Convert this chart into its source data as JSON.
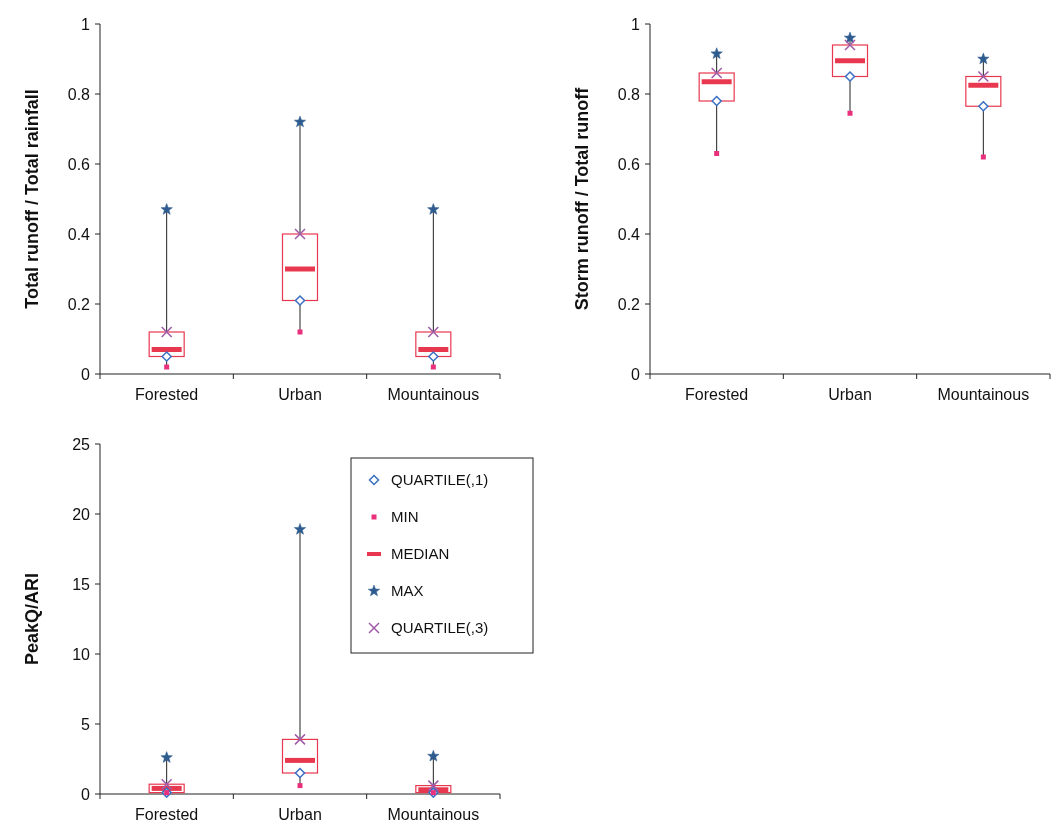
{
  "chart_data": [
    {
      "type": "box",
      "ylabel": "Total runoff / Total rainfall",
      "categories": [
        "Forested",
        "Urban",
        "Mountainous"
      ],
      "ylim": [
        0,
        1
      ],
      "yticks": [
        0,
        0.2,
        0.4,
        0.6,
        0.8,
        1
      ],
      "legend": false,
      "series": [
        {
          "type": "scatter",
          "marker": "diamond",
          "color": "#3a6fc4",
          "x": [
            "Forested",
            "Urban",
            "Mountainous"
          ],
          "values": [
            0.05,
            0.21,
            0.05
          ]
        },
        {
          "type": "scatter",
          "marker": "square",
          "color": "#e8307c",
          "x": [
            "Forested",
            "Urban",
            "Mountainous"
          ],
          "values": [
            0.02,
            0.12,
            0.02
          ]
        },
        {
          "color": "#e8384f",
          "boxes": [
            {
              "low": 0.02,
              "q1": 0.05,
              "median": 0.07,
              "q3": 0.12,
              "high": 0.47
            },
            {
              "low": 0.12,
              "q1": 0.21,
              "median": 0.3,
              "q3": 0.4,
              "high": 0.72
            },
            {
              "low": 0.02,
              "q1": 0.05,
              "median": 0.07,
              "q3": 0.12,
              "high": 0.47
            }
          ]
        },
        {
          "type": "scatter",
          "marker": "star",
          "color": "#2f5c8f",
          "x": [
            "Forested",
            "Urban",
            "Mountainous"
          ],
          "values": [
            0.47,
            0.72,
            0.47
          ]
        },
        {
          "type": "scatter",
          "marker": "cross",
          "color": "#a05aa8",
          "x": [
            "Forested",
            "Urban",
            "Mountainous"
          ],
          "values": [
            0.12,
            0.4,
            0.12
          ]
        }
      ]
    },
    {
      "type": "box",
      "ylabel": "Storm runoff / Total runoff",
      "categories": [
        "Forested",
        "Urban",
        "Mountainous"
      ],
      "ylim": [
        0,
        1
      ],
      "yticks": [
        0,
        0.2,
        0.4,
        0.6,
        0.8,
        1
      ],
      "legend": false,
      "series": [
        {
          "type": "scatter",
          "marker": "diamond",
          "color": "#3a6fc4",
          "x": [
            "Forested",
            "Urban",
            "Mountainous"
          ],
          "values": [
            0.78,
            0.85,
            0.765
          ]
        },
        {
          "type": "scatter",
          "marker": "square",
          "color": "#e8307c",
          "x": [
            "Forested",
            "Urban",
            "Mountainous"
          ],
          "values": [
            0.63,
            0.745,
            0.62
          ]
        },
        {
          "color": "#e8384f",
          "boxes": [
            {
              "low": 0.63,
              "q1": 0.78,
              "median": 0.835,
              "q3": 0.86,
              "high": 0.915
            },
            {
              "low": 0.745,
              "q1": 0.85,
              "median": 0.895,
              "q3": 0.94,
              "high": 0.96
            },
            {
              "low": 0.62,
              "q1": 0.765,
              "median": 0.825,
              "q3": 0.85,
              "high": 0.9
            }
          ]
        },
        {
          "type": "scatter",
          "marker": "star",
          "color": "#2f5c8f",
          "x": [
            "Forested",
            "Urban",
            "Mountainous"
          ],
          "values": [
            0.915,
            0.96,
            0.9
          ]
        },
        {
          "type": "scatter",
          "marker": "cross",
          "color": "#a05aa8",
          "x": [
            "Forested",
            "Urban",
            "Mountainous"
          ],
          "values": [
            0.86,
            0.94,
            0.85
          ]
        }
      ]
    },
    {
      "type": "box",
      "ylabel": "PeakQ/ARI",
      "categories": [
        "Forested",
        "Urban",
        "Mountainous"
      ],
      "ylim": [
        0,
        25
      ],
      "yticks": [
        0,
        5,
        10,
        15,
        20,
        25
      ],
      "legend": "top right",
      "series": [
        {
          "name": "QUARTILE(,1)",
          "type": "scatter",
          "marker": "diamond",
          "color": "#3a6fc4",
          "x": [
            "Forested",
            "Urban",
            "Mountainous"
          ],
          "values": [
            0.1,
            1.5,
            0.1
          ]
        },
        {
          "name": "MIN",
          "type": "scatter",
          "marker": "square",
          "color": "#e8307c",
          "x": [
            "Forested",
            "Urban",
            "Mountainous"
          ],
          "values": [
            0.1,
            0.6,
            0.1
          ]
        },
        {
          "name": "MEDIAN",
          "color": "#e8384f",
          "boxes": [
            {
              "low": 0.1,
              "q1": 0.1,
              "median": 0.4,
              "q3": 0.7,
              "high": 2.6
            },
            {
              "low": 0.6,
              "q1": 1.5,
              "median": 2.4,
              "q3": 3.9,
              "high": 18.9
            },
            {
              "low": 0.1,
              "q1": 0.1,
              "median": 0.3,
              "q3": 0.6,
              "high": 2.7
            }
          ]
        },
        {
          "name": "MAX",
          "type": "scatter",
          "marker": "star",
          "color": "#2f5c8f",
          "x": [
            "Forested",
            "Urban",
            "Mountainous"
          ],
          "values": [
            2.6,
            18.9,
            2.7
          ]
        },
        {
          "name": "QUARTILE(,3)",
          "type": "scatter",
          "marker": "cross",
          "color": "#a05aa8",
          "x": [
            "Forested",
            "Urban",
            "Mountainous"
          ],
          "values": [
            0.7,
            3.9,
            0.6
          ]
        }
      ]
    }
  ]
}
